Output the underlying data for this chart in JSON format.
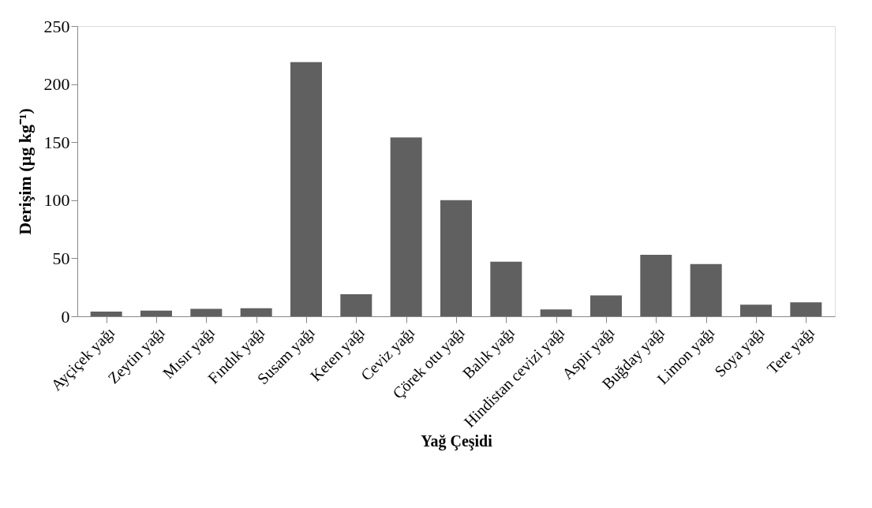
{
  "chart_data": {
    "type": "bar",
    "xlabel": "Yağ Çeşidi",
    "ylabel": "Derişim (µg kg⁻¹)",
    "categories": [
      "Ayçiçek yağı",
      "Zeytin yağı",
      "Mısır yağı",
      "Fındık yağı",
      "Susam yağı",
      "Keten yağı",
      "Ceviz yağı",
      "Çörek otu yağı",
      "Balık yağı",
      "Hindistan cevizi yağı",
      "Aspir yağı",
      "Buğday yağı",
      "Limon yağı",
      "Soya yağı",
      "Tere yağı"
    ],
    "values": [
      4,
      5,
      6.5,
      7,
      219,
      19,
      154,
      100,
      47,
      6,
      18,
      53,
      45,
      10,
      12
    ],
    "color": "#606060",
    "ylim": [
      0,
      250
    ],
    "yticks": [
      0,
      50,
      100,
      150,
      200,
      250
    ],
    "grid": false
  }
}
